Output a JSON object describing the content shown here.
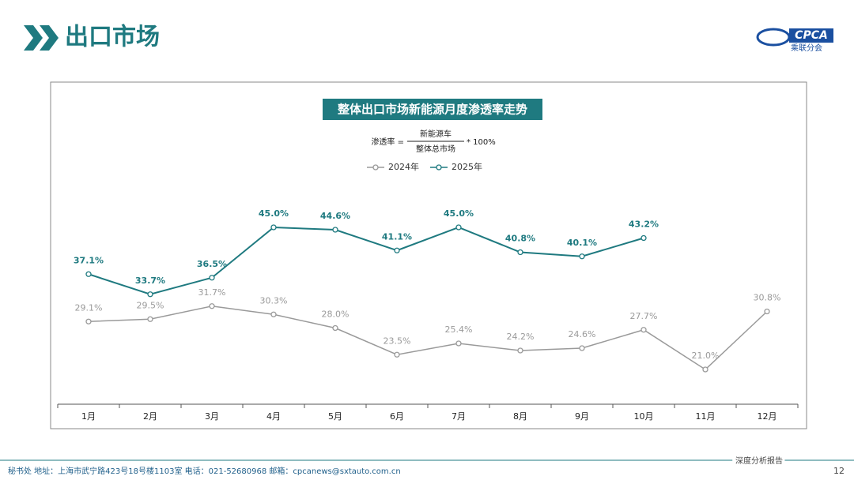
{
  "header": {
    "title": "出口市场",
    "logo_text": "CPCA",
    "logo_subtitle": "乘联分会"
  },
  "chart_data": {
    "type": "line",
    "title": "整体出口市场新能源月度渗透率走势",
    "formula": {
      "left": "渗透率 =",
      "numerator": "新能源车",
      "denominator": "整体总市场",
      "right": "* 100%"
    },
    "categories": [
      "1月",
      "2月",
      "3月",
      "4月",
      "5月",
      "6月",
      "7月",
      "8月",
      "9月",
      "10月",
      "11月",
      "12月"
    ],
    "series": [
      {
        "name": "2024年",
        "color": "#9a9a9a",
        "values": [
          29.1,
          29.5,
          31.7,
          30.3,
          28.0,
          23.5,
          25.4,
          24.2,
          24.6,
          27.7,
          21.0,
          30.8
        ],
        "value_labels": [
          "29.1%",
          "29.5%",
          "31.7%",
          "30.3%",
          "28.0%",
          "23.5%",
          "25.4%",
          "24.2%",
          "24.6%",
          "27.7%",
          "21.0%",
          "30.8%"
        ]
      },
      {
        "name": "2025年",
        "color": "#1f7a80",
        "values": [
          37.1,
          33.7,
          36.5,
          45.0,
          44.6,
          41.1,
          45.0,
          40.8,
          40.1,
          43.2,
          null,
          null
        ],
        "value_labels": [
          "37.1%",
          "33.7%",
          "36.5%",
          "45.0%",
          "44.6%",
          "41.1%",
          "45.0%",
          "40.8%",
          "40.1%",
          "43.2%",
          null,
          null
        ]
      }
    ]
  },
  "footer": {
    "address": "秘书处  地址：上海市武宁路423号18号楼1103室  电话：021-52680968  邮箱：cpcanews@sxtauto.com.cn",
    "report": "深度分析报告",
    "page": "12"
  }
}
